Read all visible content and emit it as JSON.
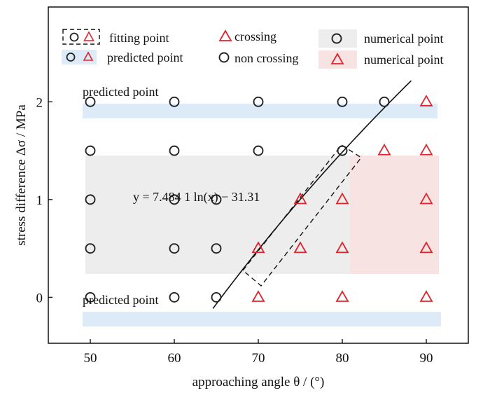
{
  "chart_data": {
    "type": "scatter",
    "xlabel": "approaching angle θ / (°)",
    "ylabel": "stress difference Δσ / MPa",
    "xlim": [
      45,
      95
    ],
    "ylim": [
      -0.47,
      2.97
    ],
    "x_ticks": [
      50,
      60,
      70,
      80,
      90
    ],
    "y_ticks": [
      0,
      1,
      2
    ],
    "legend": {
      "fitting_point": "fitting point",
      "predicted_point": "predicted point",
      "crossing": "crossing",
      "non_crossing": "non crossing",
      "numerical_circle": "numerical point",
      "numerical_triangle": "numerical point"
    },
    "band_labels": {
      "top": "predicted point",
      "bottom": "predicted point"
    },
    "equation": "y = 7.484 1 ln(x) − 31.31",
    "fit_coefficients": {
      "a": 7.4841,
      "b": -31.31
    },
    "series": [
      {
        "name": "non crossing",
        "marker": "circle",
        "points": [
          [
            50,
            0
          ],
          [
            60,
            0
          ],
          [
            65,
            0
          ],
          [
            50,
            0.5
          ],
          [
            60,
            0.5
          ],
          [
            65,
            0.5
          ],
          [
            50,
            1
          ],
          [
            60,
            1
          ],
          [
            65,
            1
          ],
          [
            50,
            1.5
          ],
          [
            60,
            1.5
          ],
          [
            70,
            1.5
          ],
          [
            80,
            1.5
          ],
          [
            50,
            2
          ],
          [
            60,
            2
          ],
          [
            70,
            2
          ],
          [
            80,
            2
          ],
          [
            85,
            2
          ]
        ]
      },
      {
        "name": "crossing",
        "marker": "triangle",
        "points": [
          [
            70,
            0
          ],
          [
            80,
            0
          ],
          [
            90,
            0
          ],
          [
            70,
            0.5
          ],
          [
            75,
            0.5
          ],
          [
            80,
            0.5
          ],
          [
            90,
            0.5
          ],
          [
            75,
            1
          ],
          [
            80,
            1
          ],
          [
            90,
            1
          ],
          [
            85,
            1.5
          ],
          [
            90,
            1.5
          ],
          [
            90,
            2
          ]
        ]
      }
    ],
    "colors": {
      "circle": "#222222",
      "triangle": "#e0242c",
      "band_blue": "#dcebf7",
      "region_gray": "#ededed",
      "region_pink": "#f7e3e2"
    }
  }
}
